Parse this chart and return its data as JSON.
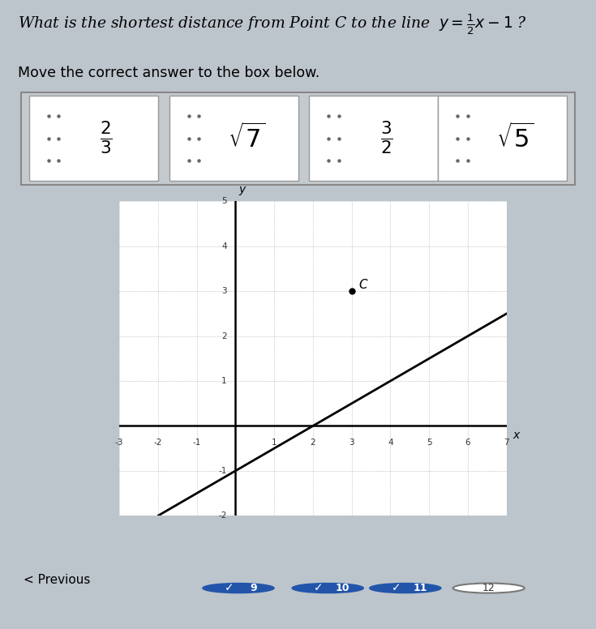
{
  "title_line1": "What is the shortest distance from Point C to the line ",
  "title_eq": "y=\\frac{1}{2}x-1",
  "subtitle": "Move the correct answer to the box below.",
  "bg_color": "#bcc4cc",
  "card_bg": "#ffffff",
  "outer_box_color": "#c8cdd2",
  "card_labels": [
    "$\\frac{2}{3}$",
    "$\\sqrt{7}$",
    "$\\frac{3}{2}$",
    "$\\sqrt{5}$"
  ],
  "grid_xlim": [
    -3,
    7
  ],
  "grid_ylim": [
    -2,
    5
  ],
  "point_C": [
    3,
    3
  ],
  "line_slope": 0.5,
  "line_intercept": -1,
  "nav_items": [
    "9",
    "10",
    "11",
    "12"
  ],
  "nav_checked": [
    true,
    true,
    true,
    false
  ],
  "nav_check_color": "#2255aa",
  "graph_bg": "#f0f2f4"
}
